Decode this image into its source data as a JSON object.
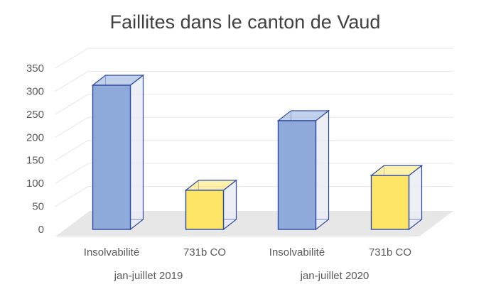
{
  "chart_data": {
    "type": "bar",
    "title": "Faillites dans le canton de Vaud",
    "xlabel": "",
    "ylabel": "",
    "ylim": [
      0,
      350
    ],
    "yticks": [
      0,
      50,
      100,
      150,
      200,
      250,
      300,
      350
    ],
    "grid": true,
    "legend": "none",
    "groups": [
      {
        "label": "jan-juillet 2019",
        "bars": [
          {
            "category": "Insolvabilité",
            "value": 313
          },
          {
            "category": "731b CO",
            "value": 85
          }
        ]
      },
      {
        "label": "jan-juillet 2020",
        "bars": [
          {
            "category": "Insolvabilité",
            "value": 236
          },
          {
            "category": "731b CO",
            "value": 117
          }
        ]
      }
    ],
    "colors": {
      "Insolvabilité": "#8eaadb",
      "731b CO": "#ffe566",
      "bar_edge": "#2f4aa0",
      "text": "#595959",
      "title": "#404040",
      "grid": "#e6e6e6",
      "floor": "#e7e7e7"
    }
  }
}
